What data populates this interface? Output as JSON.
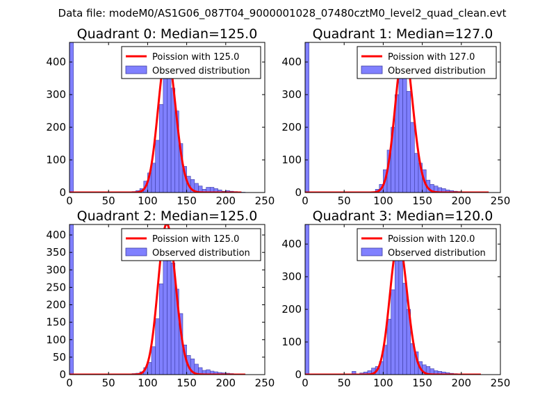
{
  "figure_title": "Data file: modeM0/AS1G06_087T04_9000001028_07480cztM0_level2_quad_clean.evt",
  "colors": {
    "bar_fill": "#8080ff",
    "bar_edge": "#3a3aa0",
    "poisson_line": "#ff0000",
    "axes": "#000000",
    "background": "#ffffff"
  },
  "chart_data": [
    {
      "type": "bar",
      "title": "Quadrant 0: Median=125.0",
      "xlim": [
        0,
        250
      ],
      "ylim": [
        0,
        460
      ],
      "xticks": [
        0,
        50,
        100,
        150,
        200,
        250
      ],
      "yticks": [
        0,
        100,
        200,
        300,
        400
      ],
      "bin_width": 5,
      "bins": [
        0,
        70,
        75,
        80,
        85,
        90,
        95,
        100,
        105,
        110,
        115,
        120,
        125,
        130,
        135,
        140,
        145,
        150,
        155,
        160,
        165,
        170,
        175,
        180,
        185,
        190,
        195,
        200,
        205,
        210,
        215,
        220
      ],
      "counts": [
        460,
        2,
        1,
        3,
        6,
        12,
        35,
        60,
        90,
        160,
        270,
        380,
        370,
        320,
        250,
        150,
        80,
        50,
        40,
        28,
        20,
        10,
        16,
        16,
        12,
        8,
        4,
        6,
        4,
        3,
        2,
        1
      ],
      "poisson_mean": 125.0,
      "poisson_xrange": [
        0,
        220
      ],
      "legend": {
        "placement": "top-right",
        "entries": [
          "Poission with 125.0",
          "Observed distribution"
        ]
      }
    },
    {
      "type": "bar",
      "title": "Quadrant 1: Median=127.0",
      "xlim": [
        0,
        250
      ],
      "ylim": [
        0,
        460
      ],
      "xticks": [
        0,
        50,
        100,
        150,
        200,
        250
      ],
      "yticks": [
        0,
        100,
        200,
        300,
        400
      ],
      "bin_width": 5,
      "bins": [
        0,
        90,
        95,
        100,
        105,
        110,
        115,
        120,
        125,
        130,
        135,
        140,
        145,
        150,
        155,
        160,
        165,
        170,
        175,
        180,
        185,
        190,
        195,
        200,
        205,
        210
      ],
      "counts": [
        460,
        10,
        25,
        70,
        130,
        200,
        300,
        440,
        380,
        310,
        215,
        120,
        90,
        70,
        38,
        25,
        20,
        15,
        12,
        8,
        6,
        4,
        3,
        2,
        1,
        1
      ],
      "poisson_mean": 127.0,
      "poisson_xrange": [
        0,
        235
      ],
      "legend": {
        "placement": "top-right",
        "entries": [
          "Poission with 127.0",
          "Observed distribution"
        ]
      }
    },
    {
      "type": "bar",
      "title": "Quadrant 2: Median=125.0",
      "xlim": [
        0,
        250
      ],
      "ylim": [
        0,
        430
      ],
      "xticks": [
        0,
        50,
        100,
        150,
        200,
        250
      ],
      "yticks": [
        0,
        50,
        100,
        150,
        200,
        250,
        300,
        350,
        400
      ],
      "bin_width": 5,
      "bins": [
        0,
        75,
        80,
        85,
        90,
        95,
        100,
        105,
        110,
        115,
        120,
        125,
        130,
        135,
        140,
        145,
        150,
        155,
        160,
        165,
        170,
        175,
        180,
        185,
        190,
        195,
        200,
        205,
        210,
        215,
        220
      ],
      "counts": [
        430,
        2,
        3,
        4,
        8,
        20,
        35,
        80,
        160,
        260,
        410,
        400,
        320,
        245,
        175,
        85,
        55,
        45,
        30,
        20,
        12,
        14,
        10,
        8,
        6,
        5,
        4,
        3,
        2,
        1,
        1
      ],
      "poisson_mean": 125.0,
      "poisson_xrange": [
        0,
        225
      ],
      "legend": {
        "placement": "top-right",
        "entries": [
          "Poission with 125.0",
          "Observed distribution"
        ]
      }
    },
    {
      "type": "bar",
      "title": "Quadrant 3: Median=120.0",
      "xlim": [
        0,
        250
      ],
      "ylim": [
        0,
        460
      ],
      "xticks": [
        0,
        50,
        100,
        150,
        200,
        250
      ],
      "yticks": [
        0,
        100,
        200,
        300,
        400
      ],
      "bin_width": 5,
      "bins": [
        0,
        60,
        70,
        75,
        80,
        85,
        90,
        95,
        100,
        105,
        110,
        115,
        120,
        125,
        130,
        135,
        140,
        145,
        150,
        155,
        160,
        165,
        170,
        175,
        180,
        185,
        190,
        195,
        200,
        205,
        210
      ],
      "counts": [
        460,
        10,
        5,
        8,
        12,
        20,
        25,
        40,
        90,
        170,
        260,
        410,
        400,
        280,
        200,
        95,
        70,
        40,
        30,
        25,
        18,
        12,
        10,
        8,
        6,
        4,
        3,
        2,
        2,
        1,
        1
      ],
      "poisson_mean": 120.0,
      "poisson_xrange": [
        0,
        225
      ],
      "legend": {
        "placement": "top-right",
        "entries": [
          "Poission with 120.0",
          "Observed distribution"
        ]
      }
    }
  ]
}
